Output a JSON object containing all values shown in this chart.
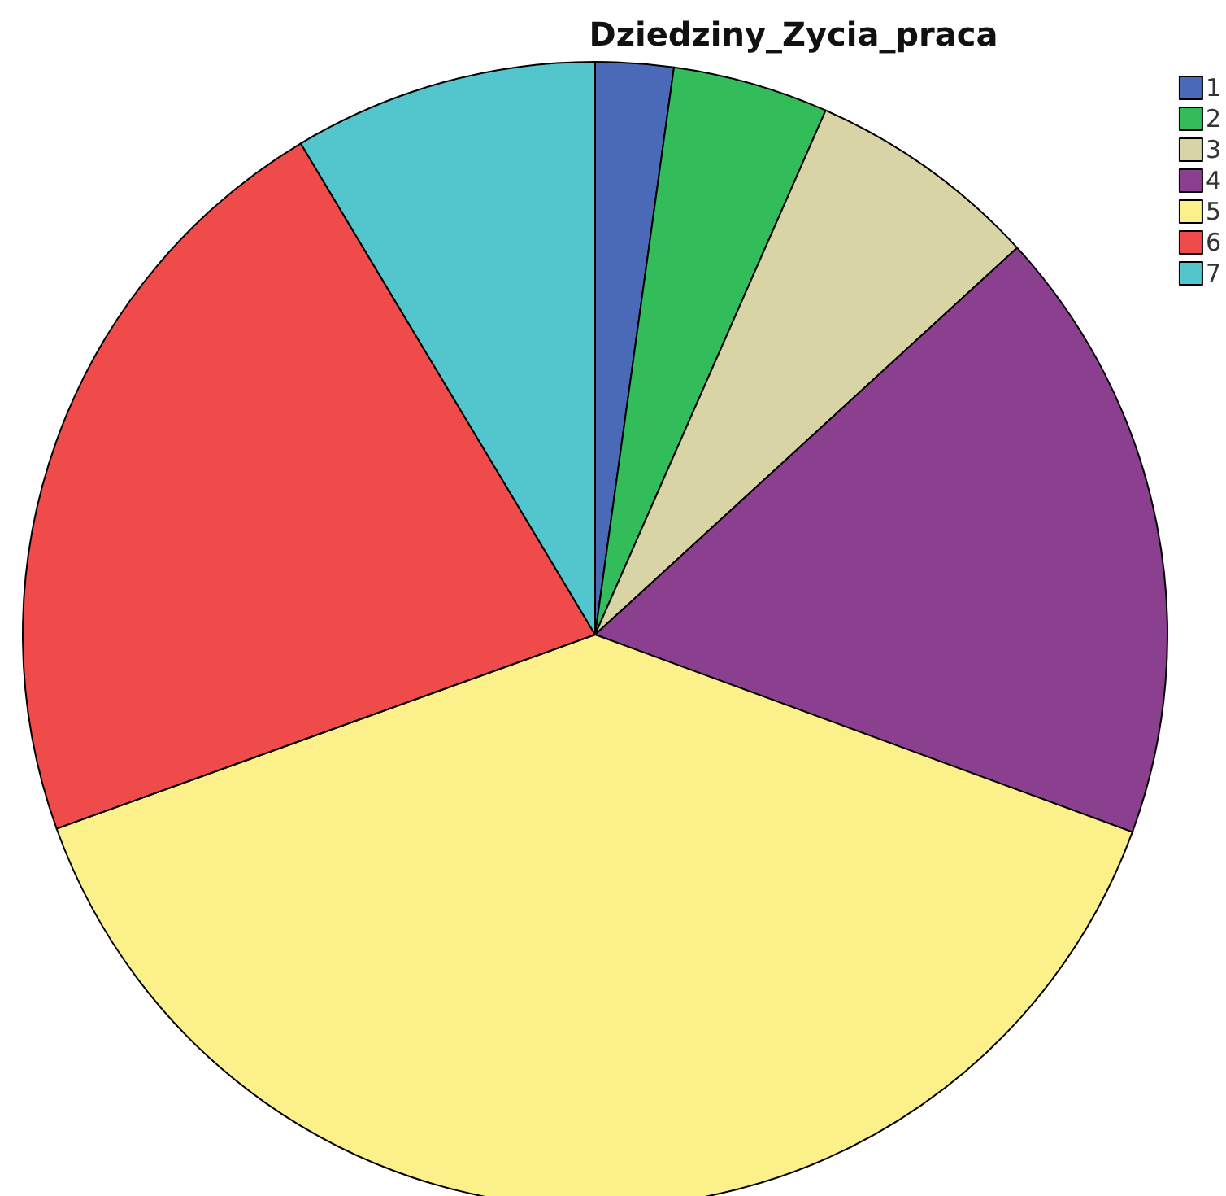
{
  "chart_data": {
    "type": "pie",
    "title": "Dziedziny_Zycia_praca",
    "categories": [
      "1",
      "2",
      "3",
      "4",
      "5",
      "6",
      "7"
    ],
    "values": [
      2.2,
      4.4,
      6.6,
      17.4,
      38.9,
      21.9,
      8.6
    ],
    "colors": [
      "#4a6ab8",
      "#33bd5a",
      "#d9d4a6",
      "#8b3f8f",
      "#fbf08a",
      "#f04b4b",
      "#52c6cc"
    ],
    "legend": "top right"
  }
}
